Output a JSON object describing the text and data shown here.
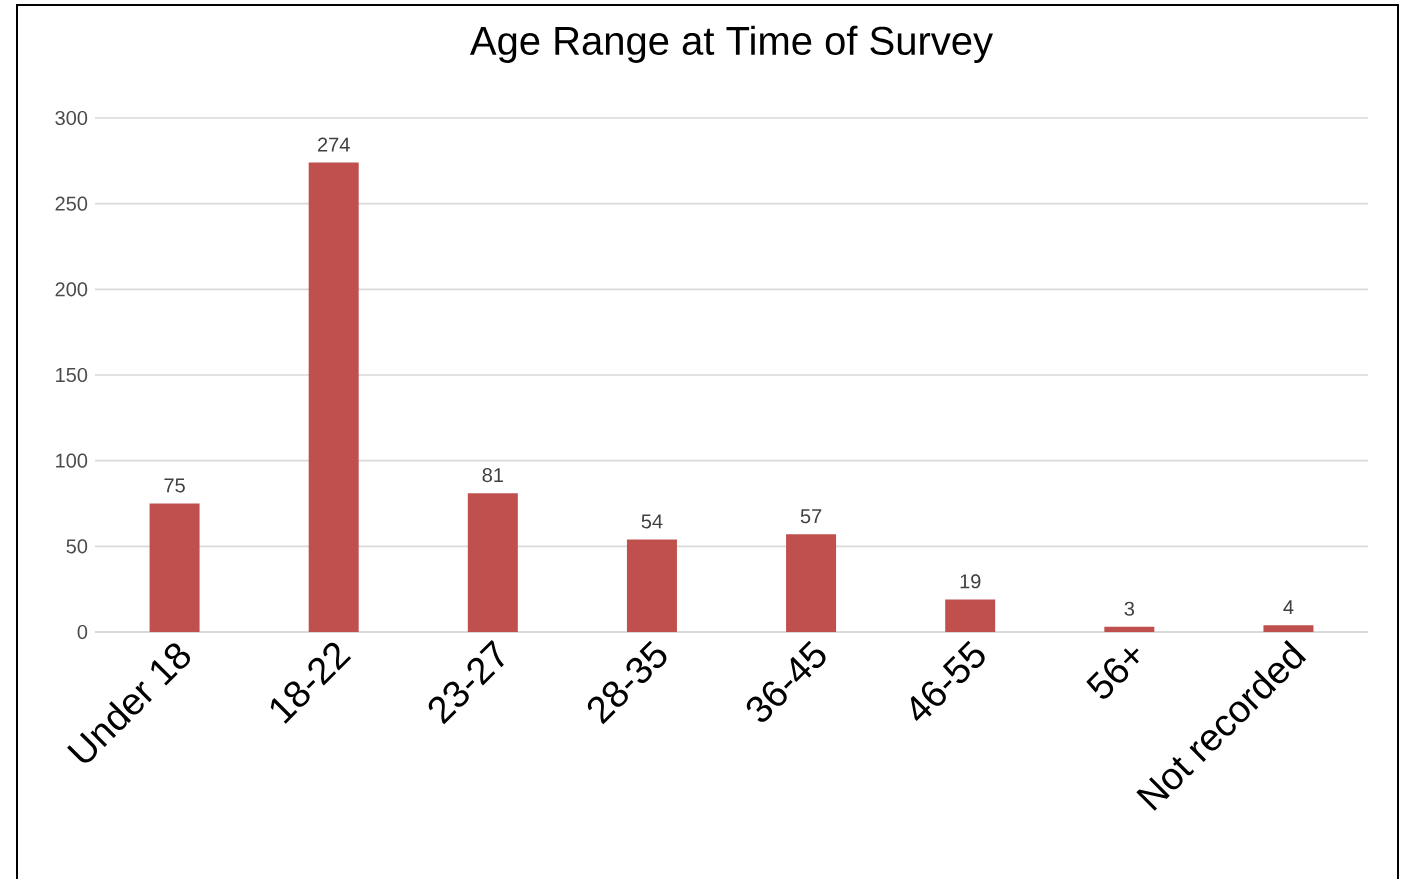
{
  "chart_data": {
    "type": "bar",
    "title": "Age Range at Time of Survey",
    "categories": [
      "Under 18",
      "18-22",
      "23-27",
      "28-35",
      "36-45",
      "46-55",
      "56+",
      "Not recorded"
    ],
    "values": [
      75,
      274,
      81,
      54,
      57,
      19,
      3,
      4
    ],
    "color": "#c0504d",
    "ylim": [
      0,
      300
    ],
    "yticks": [
      0,
      50,
      100,
      150,
      200,
      250,
      300
    ],
    "grid": "y",
    "data_labels": true
  }
}
